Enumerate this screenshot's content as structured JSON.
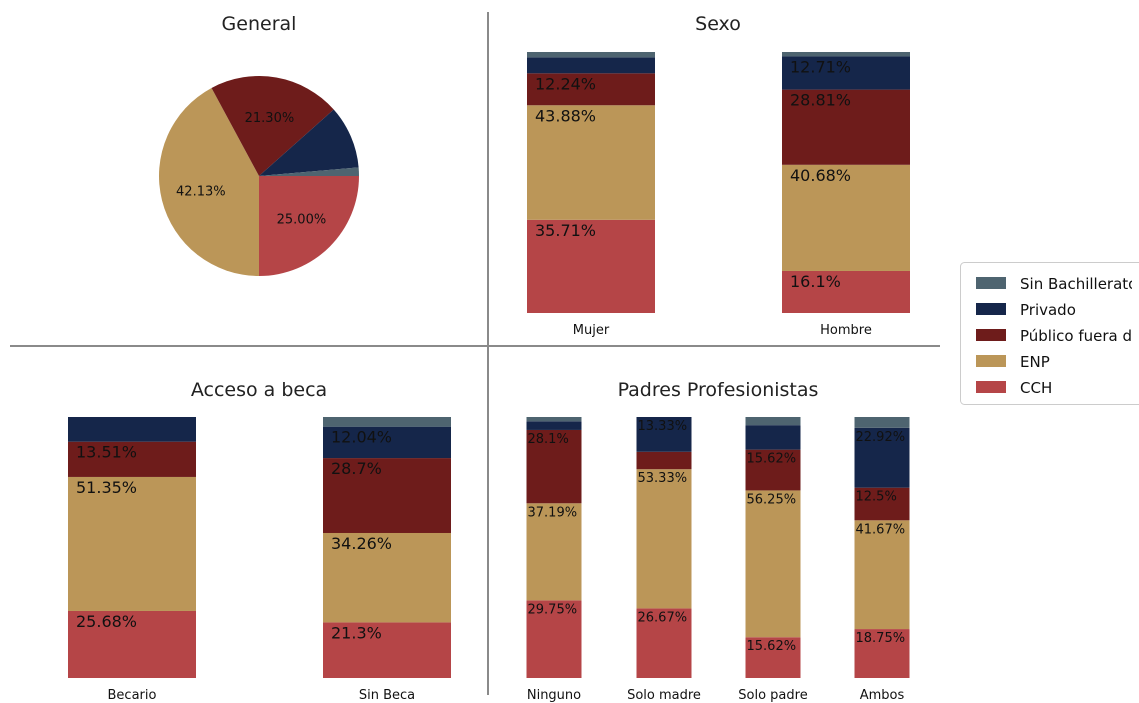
{
  "colors": {
    "Sin Bachillerato": "#4e6470",
    "Privado": "#15264a",
    "Público fuera de UNAM": "#6e1c1b",
    "ENP": "#bb9658",
    "CCH": "#b54547"
  },
  "legend": {
    "items": [
      {
        "label": "Sin Bachillerato",
        "color": "#4e6470"
      },
      {
        "label": "Privado",
        "color": "#15264a"
      },
      {
        "label": "Público fuera de UNAM",
        "color": "#6e1c1b"
      },
      {
        "label": "ENP",
        "color": "#bb9658"
      },
      {
        "label": "CCH",
        "color": "#b54547"
      }
    ]
  },
  "chart_data": [
    {
      "type": "pie",
      "title": "General",
      "slices": [
        {
          "label": "CCH",
          "value": 25.0,
          "text": "25.00%"
        },
        {
          "label": "ENP",
          "value": 42.13,
          "text": "42.13%"
        },
        {
          "label": "Público fuera de UNAM",
          "value": 21.3,
          "text": "21.30%"
        },
        {
          "label": "Privado",
          "value": 10.19,
          "text": ""
        },
        {
          "label": "Sin Bachillerato",
          "value": 1.38,
          "text": ""
        }
      ]
    },
    {
      "type": "bar",
      "stacked": true,
      "title": "Sexo",
      "categories": [
        "Mujer",
        "Hombre"
      ],
      "series": [
        {
          "name": "CCH",
          "values": [
            35.71,
            16.1
          ],
          "labels": [
            "35.71%",
            "16.1%"
          ]
        },
        {
          "name": "ENP",
          "values": [
            43.88,
            40.68
          ],
          "labels": [
            "43.88%",
            "40.68%"
          ]
        },
        {
          "name": "Público fuera de UNAM",
          "values": [
            12.24,
            28.81
          ],
          "labels": [
            "12.24%",
            "28.81%"
          ]
        },
        {
          "name": "Privado",
          "values": [
            6.12,
            12.71
          ],
          "labels": [
            "",
            "12.71%"
          ]
        },
        {
          "name": "Sin Bachillerato",
          "values": [
            2.05,
            1.7
          ],
          "labels": [
            "",
            ""
          ]
        }
      ]
    },
    {
      "type": "bar",
      "stacked": true,
      "title": "Acceso a beca",
      "categories": [
        "Becario",
        "Sin Beca"
      ],
      "series": [
        {
          "name": "CCH",
          "values": [
            25.68,
            21.3
          ],
          "labels": [
            "25.68%",
            "21.3%"
          ]
        },
        {
          "name": "ENP",
          "values": [
            51.35,
            34.26
          ],
          "labels": [
            "51.35%",
            "34.26%"
          ]
        },
        {
          "name": "Público fuera de UNAM",
          "values": [
            13.51,
            28.7
          ],
          "labels": [
            "13.51%",
            "28.7%"
          ]
        },
        {
          "name": "Privado",
          "values": [
            9.46,
            12.04
          ],
          "labels": [
            "",
            "12.04%"
          ]
        },
        {
          "name": "Sin Bachillerato",
          "values": [
            0,
            3.7
          ],
          "labels": [
            "",
            ""
          ]
        }
      ]
    },
    {
      "type": "bar",
      "stacked": true,
      "title": "Padres Profesionistas",
      "categories": [
        "Ninguno",
        "Solo madre",
        "Solo padre",
        "Ambos"
      ],
      "series": [
        {
          "name": "CCH",
          "values": [
            29.75,
            26.67,
            15.62,
            18.75
          ],
          "labels": [
            "29.75%",
            "26.67%",
            "15.62%",
            "18.75%"
          ]
        },
        {
          "name": "ENP",
          "values": [
            37.19,
            53.33,
            56.25,
            41.67
          ],
          "labels": [
            "37.19%",
            "53.33%",
            "56.25%",
            "41.67%"
          ]
        },
        {
          "name": "Público fuera de UNAM",
          "values": [
            28.1,
            6.67,
            15.62,
            12.5
          ],
          "labels": [
            "28.1%",
            "",
            "15.62%",
            "12.5%"
          ]
        },
        {
          "name": "Privado",
          "values": [
            3.31,
            13.33,
            9.38,
            22.92
          ],
          "labels": [
            "",
            "13.33%",
            "",
            "22.92%"
          ]
        },
        {
          "name": "Sin Bachillerato",
          "values": [
            1.65,
            0,
            3.13,
            4.16
          ],
          "labels": [
            "",
            "",
            "",
            ""
          ]
        }
      ]
    }
  ]
}
